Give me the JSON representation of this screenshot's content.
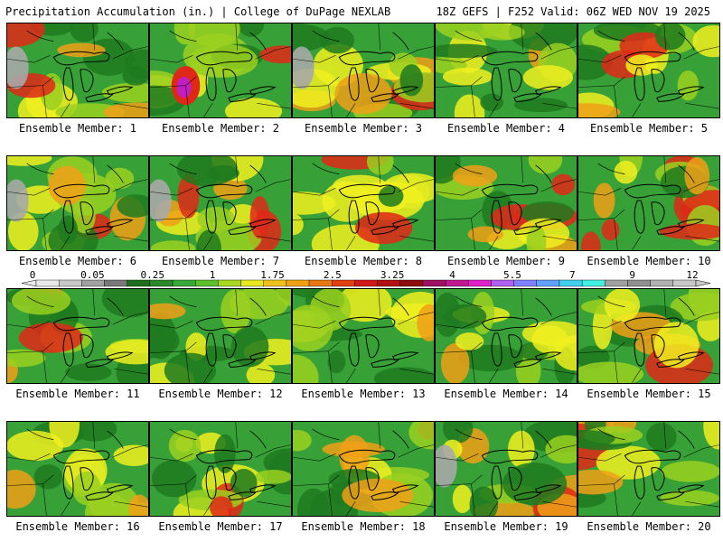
{
  "header": {
    "title": "Precipitation Accumulation (in.) | College of DuPage NEXLAB",
    "run_info": "18Z GEFS | F252 Valid: 06Z WED NOV 19 2025"
  },
  "members": [
    {
      "label": "Ensemble Member: 1"
    },
    {
      "label": "Ensemble Member: 2"
    },
    {
      "label": "Ensemble Member: 3"
    },
    {
      "label": "Ensemble Member: 4"
    },
    {
      "label": "Ensemble Member: 5"
    },
    {
      "label": "Ensemble Member: 6"
    },
    {
      "label": "Ensemble Member: 7"
    },
    {
      "label": "Ensemble Member: 8"
    },
    {
      "label": "Ensemble Member: 9"
    },
    {
      "label": "Ensemble Member: 10"
    },
    {
      "label": "Ensemble Member: 11"
    },
    {
      "label": "Ensemble Member: 12"
    },
    {
      "label": "Ensemble Member: 13"
    },
    {
      "label": "Ensemble Member: 14"
    },
    {
      "label": "Ensemble Member: 15"
    },
    {
      "label": "Ensemble Member: 16"
    },
    {
      "label": "Ensemble Member: 17"
    },
    {
      "label": "Ensemble Member: 18"
    },
    {
      "label": "Ensemble Member: 19"
    },
    {
      "label": "Ensemble Member: 20"
    }
  ],
  "colorbar": {
    "labels": [
      "0",
      "0.05",
      "0.25",
      "1",
      "1.75",
      "2.5",
      "3.25",
      "4",
      "5.5",
      "7",
      "9",
      "12"
    ],
    "colors": [
      "#e8e8e8",
      "#c8c8c8",
      "#a0a0a0",
      "#787878",
      "#1e6e1e",
      "#2a8a2a",
      "#38a838",
      "#5cc02c",
      "#a8d820",
      "#e8e820",
      "#f0c018",
      "#f0a010",
      "#e87810",
      "#e04010",
      "#d01818",
      "#b01010",
      "#900c0c",
      "#a01060",
      "#c01890",
      "#e020c8",
      "#b060f0",
      "#8080ff",
      "#60a0ff",
      "#40d0f0",
      "#40f0e0",
      "#a0a0a0",
      "#909090",
      "#b0b0b0",
      "#c8c8c8"
    ]
  },
  "palette": {
    "green_dark": "#1f7a1f",
    "green": "#37a037",
    "yellow_green": "#9ad020",
    "yellow": "#f0f020",
    "orange": "#f0a018",
    "red": "#e02818",
    "magenta": "#c020c0",
    "gray": "#a8a8a8"
  }
}
